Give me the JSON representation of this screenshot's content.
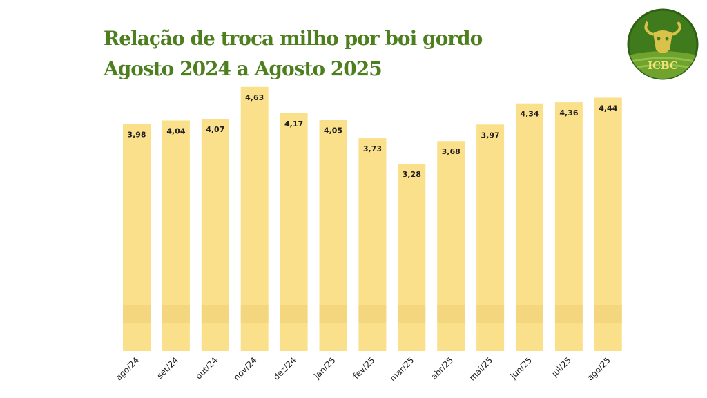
{
  "header": {
    "title_line1": "Relação de troca milho por boi gordo",
    "title_line2": "Agosto 2024 a Agosto 2025"
  },
  "logo": {
    "text": "ICBC",
    "icon": "bull-head-icon",
    "bg": "#3f7a1c",
    "accent": "#d9c24a"
  },
  "colors": {
    "title": "#4e7f1f",
    "bar": "#fbe08c",
    "bar_shade": "#e9c96a"
  },
  "chart_data": {
    "type": "bar",
    "title": "",
    "xlabel": "",
    "ylabel": "",
    "categories": [
      "ago/24",
      "set/24",
      "out/24",
      "nov/24",
      "dez/24",
      "jan/25",
      "fev/25",
      "mar/25",
      "abr/25",
      "mai/25",
      "jun/25",
      "jul/25",
      "ago/25"
    ],
    "values": [
      3.98,
      4.04,
      4.07,
      4.63,
      4.17,
      4.05,
      3.73,
      3.28,
      3.68,
      3.97,
      4.34,
      4.36,
      4.44
    ],
    "value_labels": [
      "3,98",
      "4,04",
      "4,07",
      "4,63",
      "4,17",
      "4,05",
      "3,73",
      "3,28",
      "3,68",
      "3,97",
      "4,34",
      "4,36",
      "4,44"
    ],
    "ylim": [
      0,
      4.7
    ],
    "grid": false,
    "legend": "none"
  }
}
